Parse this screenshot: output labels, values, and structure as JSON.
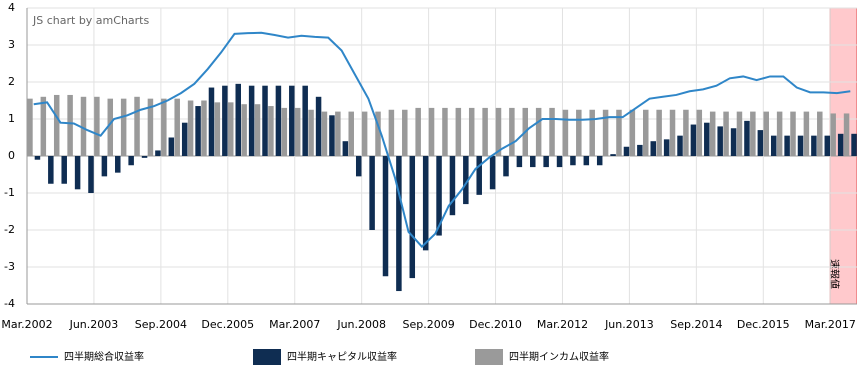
{
  "chart_data": {
    "type": "bar-line",
    "watermark": "JS chart by amCharts",
    "annotation": "速報値",
    "categories": [
      "Mar.2002",
      null,
      null,
      null,
      null,
      "Jun.2003",
      null,
      null,
      null,
      null,
      "Sep.2004",
      null,
      null,
      null,
      null,
      "Dec.2005",
      null,
      null,
      null,
      null,
      "Mar.2007",
      null,
      null,
      null,
      null,
      "Jun.2008",
      null,
      null,
      null,
      null,
      "Sep.2009",
      null,
      null,
      null,
      null,
      "Dec.2010",
      null,
      null,
      null,
      null,
      "Mar.2012",
      null,
      null,
      null,
      null,
      "Jun.2013",
      null,
      null,
      null,
      null,
      "Sep.2014",
      null,
      null,
      null,
      null,
      "Dec.2015",
      null,
      null,
      null,
      null,
      "Mar.2017",
      null
    ],
    "ylim": [
      -4,
      4
    ],
    "yticks": [
      -4,
      -3,
      -2,
      -1,
      0,
      1,
      2,
      3,
      4
    ],
    "grid": true,
    "series": [
      {
        "name": "四半期総合収益率",
        "type": "line",
        "color": "#2f86c8",
        "values": [
          1.4,
          1.45,
          0.9,
          0.88,
          0.7,
          0.55,
          1.0,
          1.1,
          1.25,
          1.35,
          1.5,
          1.7,
          1.95,
          2.35,
          2.8,
          3.3,
          3.32,
          3.33,
          3.27,
          3.2,
          3.25,
          3.22,
          3.2,
          2.85,
          2.2,
          1.55,
          0.55,
          -0.6,
          -2.05,
          -2.45,
          -2.1,
          -1.35,
          -0.9,
          -0.35,
          -0.05,
          0.2,
          0.4,
          0.75,
          1.0,
          1.0,
          0.98,
          0.98,
          1.0,
          1.05,
          1.05,
          1.3,
          1.55,
          1.6,
          1.65,
          1.75,
          1.8,
          1.9,
          2.1,
          2.15,
          2.05,
          2.15,
          2.15,
          1.85,
          1.72,
          1.72,
          1.7,
          1.75
        ]
      },
      {
        "name": "四半期キャピタル収益率",
        "type": "bar",
        "color": "#0f2d52",
        "values": [
          -0.1,
          -0.75,
          -0.75,
          -0.9,
          -1.0,
          -0.55,
          -0.45,
          -0.25,
          -0.05,
          0.15,
          0.5,
          0.9,
          1.35,
          1.85,
          1.9,
          1.95,
          1.9,
          1.9,
          1.9,
          1.9,
          1.9,
          1.6,
          1.1,
          0.4,
          -0.55,
          -2.0,
          -3.25,
          -3.65,
          -3.3,
          -2.55,
          -2.15,
          -1.6,
          -1.3,
          -1.05,
          -0.9,
          -0.55,
          -0.3,
          -0.3,
          -0.3,
          -0.3,
          -0.25,
          -0.25,
          -0.25,
          0.05,
          0.25,
          0.3,
          0.4,
          0.45,
          0.55,
          0.85,
          0.9,
          0.8,
          0.75,
          0.95,
          0.7,
          0.55,
          0.55,
          0.55,
          0.55,
          0.55,
          0.6,
          0.6
        ]
      },
      {
        "name": "四半期インカム収益率",
        "type": "bar",
        "color": "#9a9a9a",
        "values": [
          1.55,
          1.6,
          1.65,
          1.65,
          1.6,
          1.6,
          1.55,
          1.55,
          1.6,
          1.55,
          1.55,
          1.55,
          1.5,
          1.5,
          1.45,
          1.45,
          1.4,
          1.4,
          1.35,
          1.3,
          1.3,
          1.25,
          1.2,
          1.2,
          1.2,
          1.2,
          1.2,
          1.25,
          1.25,
          1.3,
          1.3,
          1.3,
          1.3,
          1.3,
          1.3,
          1.3,
          1.3,
          1.3,
          1.3,
          1.3,
          1.25,
          1.25,
          1.25,
          1.25,
          1.25,
          1.25,
          1.25,
          1.25,
          1.25,
          1.25,
          1.25,
          1.2,
          1.2,
          1.2,
          1.2,
          1.2,
          1.2,
          1.2,
          1.2,
          1.2,
          1.15,
          1.15
        ]
      }
    ]
  }
}
